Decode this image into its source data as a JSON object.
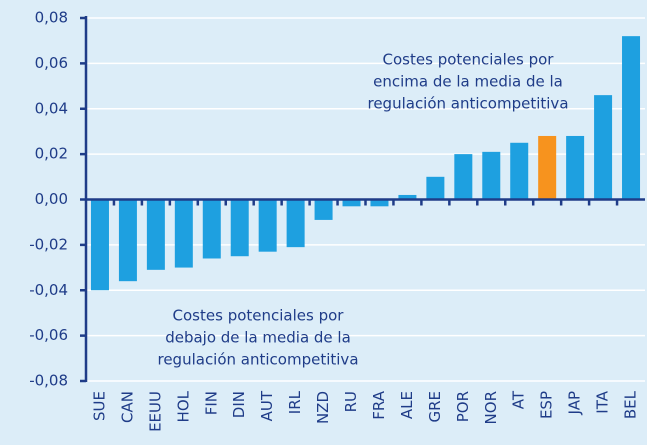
{
  "chart_data": {
    "type": "bar",
    "categories": [
      "SUE",
      "CAN",
      "EEUU",
      "HOL",
      "FIN",
      "DIN",
      "AUT",
      "IRL",
      "NZD",
      "RU",
      "FRA",
      "ALE",
      "GRE",
      "POR",
      "NOR",
      "AT",
      "ESP",
      "JAP",
      "ITA",
      "BEL"
    ],
    "values": [
      -0.04,
      -0.036,
      -0.031,
      -0.03,
      -0.026,
      -0.025,
      -0.023,
      -0.021,
      -0.009,
      -0.003,
      -0.003,
      0.002,
      0.01,
      0.02,
      0.021,
      0.025,
      0.028,
      0.028,
      0.046,
      0.072
    ],
    "colors": [
      "#1ea0e0",
      "#1ea0e0",
      "#1ea0e0",
      "#1ea0e0",
      "#1ea0e0",
      "#1ea0e0",
      "#1ea0e0",
      "#1ea0e0",
      "#1ea0e0",
      "#1ea0e0",
      "#1ea0e0",
      "#1ea0e0",
      "#1ea0e0",
      "#1ea0e0",
      "#1ea0e0",
      "#1ea0e0",
      "#f7931e",
      "#1ea0e0",
      "#1ea0e0",
      "#1ea0e0"
    ],
    "ylim": [
      -0.08,
      0.08
    ],
    "yticks": [
      {
        "value": -0.08,
        "label": "-0,08"
      },
      {
        "value": -0.06,
        "label": "-0,06"
      },
      {
        "value": -0.04,
        "label": "-0,04"
      },
      {
        "value": -0.02,
        "label": "-0,02"
      },
      {
        "value": 0,
        "label": "0,00"
      },
      {
        "value": 0.02,
        "label": "0,02"
      },
      {
        "value": 0.04,
        "label": "0,04"
      },
      {
        "value": 0.06,
        "label": "0,06"
      },
      {
        "value": 0.08,
        "label": "0,08"
      }
    ],
    "grid": true,
    "annotations": [
      {
        "lines": [
          "Costes potenciales por",
          "encima de la media de la",
          "regulación anticompetitiva"
        ]
      },
      {
        "lines": [
          "Costes potenciales por",
          "debajo de la media de la",
          "regulación anticompetitiva"
        ]
      }
    ]
  }
}
